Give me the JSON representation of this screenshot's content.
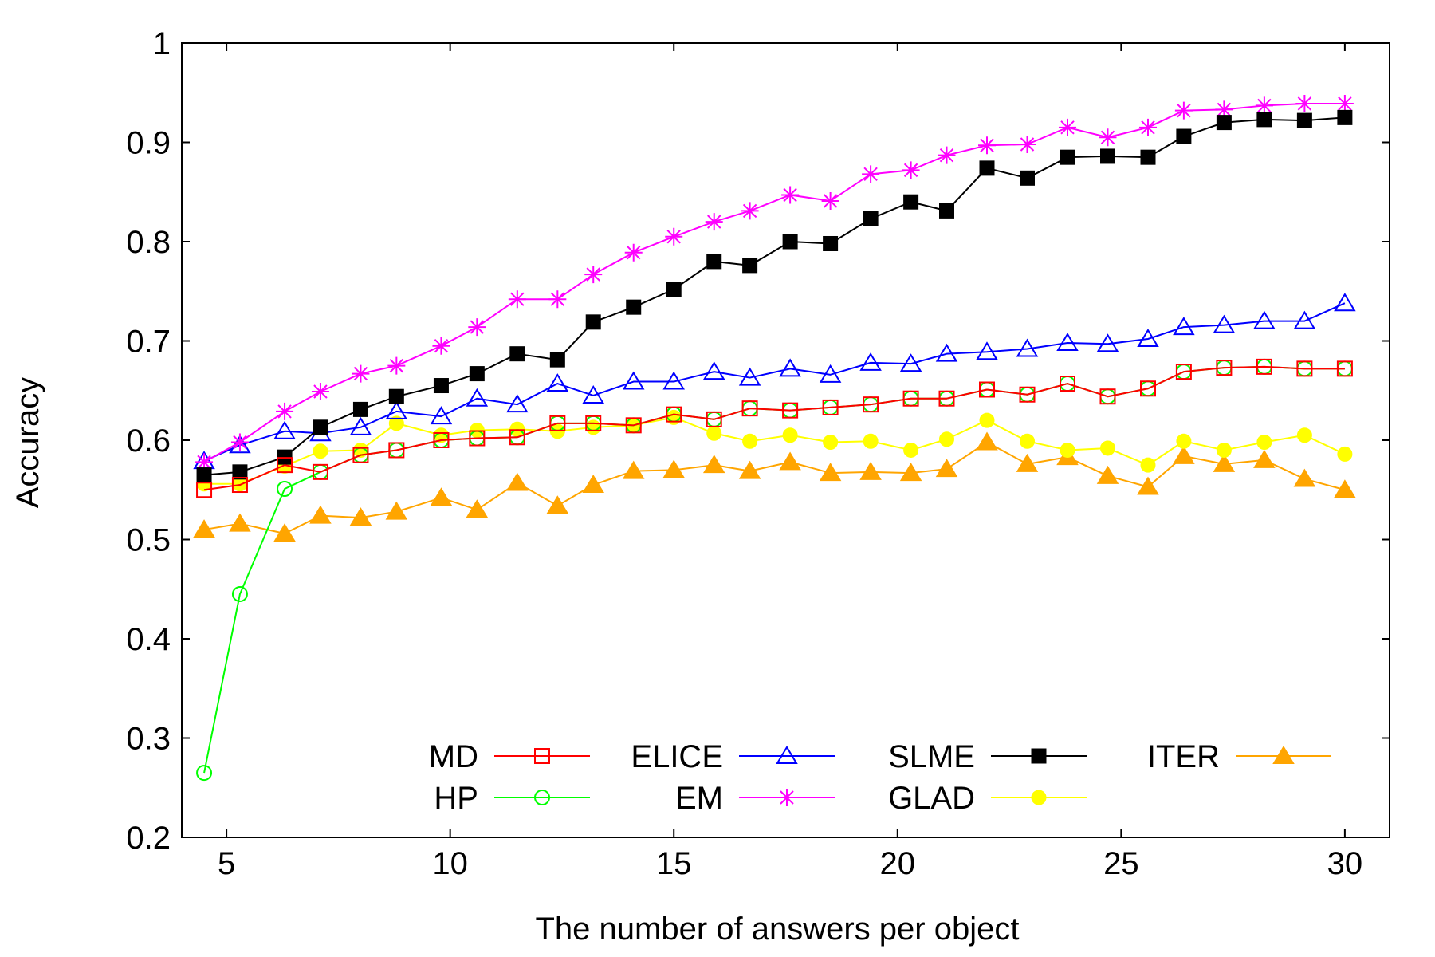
{
  "chart_data": {
    "type": "line",
    "title": "",
    "xlabel": "The number of answers per object",
    "ylabel": "Accuracy",
    "xlim": [
      4,
      31
    ],
    "ylim": [
      0.2,
      1.0
    ],
    "xticks": [
      5,
      10,
      15,
      20,
      25,
      30
    ],
    "xtick_labels": [
      "5",
      "10",
      "15",
      "20",
      "25",
      "30"
    ],
    "yticks": [
      0.2,
      0.3,
      0.4,
      0.5,
      0.6,
      0.7,
      0.8,
      0.9,
      1.0
    ],
    "ytick_labels": [
      "0.2",
      "0.3",
      "0.4",
      "0.5",
      "0.6",
      "0.7",
      "0.8",
      "0.9",
      "1"
    ],
    "grid": false,
    "legend_placement": "bottom-right",
    "x": [
      4.5,
      5.3,
      6.3,
      7.1,
      8.0,
      8.8,
      9.8,
      10.6,
      11.5,
      12.4,
      13.2,
      14.1,
      15.0,
      15.9,
      16.7,
      17.6,
      18.5,
      19.4,
      20.3,
      21.1,
      22.0,
      22.9,
      23.8,
      24.7,
      25.6,
      26.4,
      27.3,
      28.2,
      29.1,
      30.0
    ],
    "series": [
      {
        "name": "MD",
        "color": "#ff0000",
        "marker": "open-square",
        "values": [
          0.55,
          0.555,
          0.575,
          0.568,
          0.585,
          0.59,
          0.6,
          0.602,
          0.603,
          0.617,
          0.617,
          0.615,
          0.626,
          0.621,
          0.632,
          0.63,
          0.633,
          0.636,
          0.642,
          0.642,
          0.651,
          0.646,
          0.657,
          0.644,
          0.652,
          0.669,
          0.673,
          0.674,
          0.672,
          0.672
        ]
      },
      {
        "name": "HP",
        "color": "#00ff00",
        "marker": "open-circle",
        "values": [
          0.265,
          0.445,
          0.551,
          0.568,
          0.585,
          0.59,
          0.6,
          0.602,
          0.603,
          0.617,
          0.617,
          0.615,
          0.626,
          0.621,
          0.632,
          0.63,
          0.633,
          0.636,
          0.642,
          0.642,
          0.651,
          0.646,
          0.657,
          0.644,
          0.652,
          0.669,
          0.673,
          0.674,
          0.672,
          0.672
        ]
      },
      {
        "name": "ELICE",
        "color": "#0000ff",
        "marker": "open-triangle",
        "values": [
          0.579,
          0.595,
          0.609,
          0.607,
          0.613,
          0.629,
          0.624,
          0.642,
          0.636,
          0.657,
          0.645,
          0.659,
          0.659,
          0.669,
          0.663,
          0.672,
          0.666,
          0.678,
          0.677,
          0.687,
          0.689,
          0.692,
          0.698,
          0.697,
          0.702,
          0.714,
          0.716,
          0.72,
          0.72,
          0.738
        ]
      },
      {
        "name": "EM",
        "color": "#ff00ff",
        "marker": "star",
        "values": [
          0.578,
          0.598,
          0.629,
          0.649,
          0.667,
          0.675,
          0.695,
          0.714,
          0.742,
          0.742,
          0.767,
          0.789,
          0.805,
          0.82,
          0.831,
          0.847,
          0.841,
          0.868,
          0.872,
          0.887,
          0.897,
          0.898,
          0.915,
          0.905,
          0.915,
          0.932,
          0.933,
          0.937,
          0.939,
          0.939
        ]
      },
      {
        "name": "SLME",
        "color": "#000000",
        "marker": "filled-square",
        "values": [
          0.565,
          0.568,
          0.583,
          0.613,
          0.631,
          0.644,
          0.655,
          0.667,
          0.687,
          0.681,
          0.719,
          0.734,
          0.752,
          0.78,
          0.776,
          0.8,
          0.798,
          0.823,
          0.84,
          0.831,
          0.874,
          0.864,
          0.885,
          0.886,
          0.885,
          0.906,
          0.92,
          0.923,
          0.922,
          0.925
        ]
      },
      {
        "name": "GLAD",
        "color": "#ffff00",
        "marker": "filled-circle",
        "values": [
          0.556,
          0.556,
          0.574,
          0.589,
          0.59,
          0.617,
          0.605,
          0.61,
          0.611,
          0.609,
          0.613,
          0.615,
          0.623,
          0.607,
          0.599,
          0.605,
          0.598,
          0.599,
          0.59,
          0.601,
          0.62,
          0.599,
          0.59,
          0.592,
          0.575,
          0.599,
          0.59,
          0.598,
          0.605,
          0.586
        ]
      },
      {
        "name": "ITER",
        "color": "#ffa500",
        "marker": "filled-triangle",
        "values": [
          0.51,
          0.516,
          0.506,
          0.524,
          0.522,
          0.528,
          0.542,
          0.53,
          0.557,
          0.534,
          0.555,
          0.569,
          0.57,
          0.575,
          0.569,
          0.578,
          0.567,
          0.568,
          0.567,
          0.571,
          0.598,
          0.576,
          0.583,
          0.564,
          0.553,
          0.584,
          0.576,
          0.58,
          0.561,
          0.55
        ]
      }
    ]
  }
}
